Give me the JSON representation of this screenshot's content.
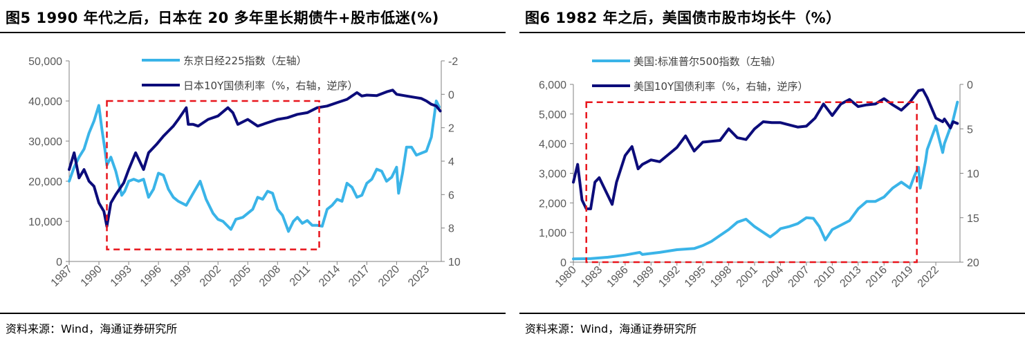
{
  "colors": {
    "nikkei": "#3ab4e8",
    "yield": "#0c0c7a",
    "box": "#e8141b",
    "axis": "#808080"
  },
  "left": {
    "title": "图5   1990 年代之后，日本在 20 多年里长期债牛+股市低迷(%)",
    "source": "资料来源：Wind，海通证券研究所",
    "legend": [
      "东京日经225指数（左轴）",
      "日本10Y国债利率（%，右轴，逆序）"
    ],
    "y_left_ticks": [
      "50,000",
      "40,000",
      "30,000",
      "20,000",
      "10,000",
      "0"
    ],
    "y_right_ticks": [
      "-2",
      "0",
      "2",
      "4",
      "6",
      "8",
      "10"
    ],
    "x_ticks": [
      "1987",
      "1990",
      "1993",
      "1996",
      "1999",
      "2002",
      "2005",
      "2008",
      "2011",
      "2014",
      "2017",
      "2020",
      "2023"
    ]
  },
  "right": {
    "title": "图6   1982 年之后，美国债市股市均长牛（%）",
    "source": "资料来源：Wind，海通证券研究所",
    "legend": [
      "美国:标准普尔500指数（左轴）",
      "美国10Y国债利率（%，右轴，逆序）"
    ],
    "y_left_ticks": [
      "6,000",
      "5,000",
      "4,000",
      "3,000",
      "2,000",
      "1,000",
      "0"
    ],
    "y_right_ticks": [
      "0",
      "5",
      "10",
      "15",
      "20"
    ],
    "x_ticks": [
      "1980",
      "1983",
      "1986",
      "1989",
      "1992",
      "1995",
      "1998",
      "2001",
      "2004",
      "2007",
      "2010",
      "2013",
      "2016",
      "2019",
      "2022"
    ]
  },
  "chart_data": [
    {
      "type": "line",
      "title": "1990 年代之后，日本在 20 多年里长期债牛+股市低迷(%)",
      "x_range": [
        1987,
        2024.5
      ],
      "y_left_range": [
        0,
        50000
      ],
      "y_right_range": [
        -2,
        10
      ],
      "y_right_inverted": true,
      "highlight_box": {
        "x": [
          1990.8,
          2012.2
        ],
        "y_left": [
          3000,
          40000
        ]
      },
      "series": [
        {
          "name": "东京日经225指数（左轴）",
          "axis": "left",
          "x": [
            1987,
            1987.5,
            1988,
            1988.5,
            1989,
            1989.5,
            1989.99,
            1990.3,
            1990.6,
            1990.8,
            1991.2,
            1991.7,
            1992.3,
            1992.6,
            1993,
            1993.5,
            1994,
            1994.5,
            1995,
            1995.5,
            1996,
            1996.5,
            1997,
            1997.5,
            1998,
            1998.8,
            1999.5,
            2000.2,
            2000.8,
            2001.5,
            2002,
            2002.5,
            2003.3,
            2003.8,
            2004.5,
            2005,
            2005.5,
            2006,
            2006.5,
            2007,
            2007.5,
            2008,
            2008.5,
            2009.1,
            2009.6,
            2010,
            2010.5,
            2011,
            2011.5,
            2012,
            2012.5,
            2013,
            2013.5,
            2014,
            2014.5,
            2015,
            2015.5,
            2016,
            2016.5,
            2017,
            2017.5,
            2018,
            2018.5,
            2018.99,
            2019.5,
            2020,
            2020.2,
            2020.6,
            2021,
            2021.5,
            2022,
            2022.5,
            2023,
            2023.5,
            2024,
            2024.3
          ],
          "values": [
            20000,
            23500,
            26000,
            28000,
            32000,
            35000,
            38900,
            33000,
            28000,
            24000,
            26000,
            22500,
            16500,
            17500,
            20000,
            20500,
            20000,
            20500,
            16000,
            18000,
            22000,
            21500,
            18000,
            16000,
            15000,
            14000,
            17000,
            20000,
            15500,
            12000,
            10500,
            10000,
            8000,
            10500,
            11000,
            12000,
            13000,
            16000,
            15500,
            17500,
            17000,
            13000,
            11500,
            7500,
            10000,
            11000,
            9500,
            10200,
            9000,
            9000,
            8800,
            13000,
            14000,
            15500,
            15000,
            19500,
            18500,
            16000,
            16500,
            19500,
            20500,
            23000,
            22500,
            20000,
            21000,
            23500,
            17000,
            22000,
            28500,
            28500,
            26500,
            27000,
            27500,
            31000,
            40000,
            38500
          ]
        },
        {
          "name": "日本10Y国债利率（%，右轴，逆序）",
          "axis": "right",
          "x": [
            1987,
            1987.5,
            1988,
            1988.5,
            1989,
            1989.5,
            1990,
            1990.5,
            1990.8,
            1991.2,
            1991.7,
            1992.5,
            1993,
            1993.7,
            1994.5,
            1995,
            1995.8,
            1996.5,
            1997,
            1997.5,
            1998,
            1998.8,
            1999,
            1999.5,
            2000,
            2001,
            2002,
            2003,
            2003.5,
            2004,
            2005,
            2006,
            2007,
            2008,
            2009,
            2010,
            2011,
            2012,
            2013,
            2014,
            2015,
            2016,
            2016.5,
            2017,
            2018,
            2019,
            2019.6,
            2020,
            2021,
            2022,
            2022.5,
            2023,
            2023.5,
            2024,
            2024.4
          ],
          "values": [
            4.5,
            3.5,
            5,
            4.5,
            5.2,
            5.5,
            6.5,
            7,
            7.9,
            6.5,
            6,
            5.3,
            4.5,
            3.5,
            4.5,
            3.5,
            3,
            2.5,
            2.2,
            1.9,
            1.5,
            0.8,
            1.8,
            1.8,
            1.9,
            1.5,
            1.3,
            0.8,
            1.1,
            1.8,
            1.5,
            1.9,
            1.7,
            1.5,
            1.4,
            1.2,
            1.1,
            0.8,
            0.7,
            0.5,
            0.3,
            -0.1,
            0.1,
            0.05,
            0.08,
            -0.15,
            -0.25,
            0.0,
            0.1,
            0.2,
            0.25,
            0.4,
            0.6,
            0.7,
            1.0
          ]
        }
      ]
    },
    {
      "type": "line",
      "title": "1982 年之后，美国债市股市均长牛（%）",
      "x_range": [
        1980,
        2024.8
      ],
      "y_left_range": [
        0,
        6000
      ],
      "y_right_range": [
        0,
        20
      ],
      "y_right_inverted": true,
      "highlight_box": {
        "x": [
          1981.5,
          2019.8
        ],
        "y_left": [
          0,
          5400
        ]
      },
      "series": [
        {
          "name": "美国:标准普尔500指数（左轴）",
          "axis": "left",
          "x": [
            1980,
            1982,
            1984,
            1986,
            1987.7,
            1988,
            1990,
            1992,
            1994,
            1995,
            1996,
            1997,
            1998,
            1999,
            2000,
            2001,
            2002.8,
            2003.5,
            2004,
            2005,
            2006,
            2007,
            2007.8,
            2008.5,
            2009.2,
            2010,
            2011,
            2012,
            2013,
            2014,
            2015,
            2016,
            2017,
            2018,
            2018.99,
            2019.5,
            2020,
            2020.2,
            2020.8,
            2021,
            2022,
            2022.8,
            2023,
            2023.5,
            2024,
            2024.5
          ],
          "values": [
            110,
            120,
            165,
            240,
            330,
            260,
            330,
            420,
            460,
            560,
            700,
            900,
            1100,
            1350,
            1450,
            1200,
            850,
            1000,
            1130,
            1200,
            1300,
            1500,
            1480,
            1200,
            750,
            1100,
            1250,
            1400,
            1800,
            2050,
            2050,
            2200,
            2500,
            2700,
            2500,
            2900,
            3200,
            2500,
            3400,
            3800,
            4600,
            3700,
            4000,
            4400,
            4800,
            5400
          ]
        },
        {
          "name": "美国10Y国债利率（%，右轴，逆序）",
          "axis": "right",
          "x": [
            1980,
            1980.5,
            1981,
            1981.5,
            1982,
            1982.5,
            1983,
            1984,
            1984.5,
            1985,
            1986,
            1986.8,
            1987.5,
            1988,
            1989,
            1990,
            1991,
            1992,
            1993,
            1994,
            1995,
            1996,
            1997,
            1998,
            1999,
            2000,
            2001,
            2002,
            2003,
            2004,
            2006,
            2007,
            2008,
            2008.99,
            2010,
            2011,
            2012,
            2013,
            2014,
            2015,
            2016,
            2017,
            2018,
            2019,
            2020,
            2020.5,
            2021,
            2022,
            2022.8,
            2023,
            2023.7,
            2024,
            2024.5
          ],
          "values": [
            11,
            9,
            13,
            14,
            14,
            11,
            10.5,
            12.5,
            13.5,
            11,
            8,
            7,
            9.5,
            9,
            8.5,
            8.7,
            7.9,
            7.1,
            5.8,
            7.5,
            6.5,
            6.4,
            6.3,
            5,
            6,
            6.2,
            5,
            4.2,
            4.3,
            4.3,
            4.8,
            4.7,
            3.8,
            2.2,
            3.5,
            2.2,
            1.7,
            2.5,
            2.3,
            2.2,
            1.6,
            2.3,
            2.9,
            2,
            0.7,
            0.6,
            1.5,
            3.8,
            4.2,
            3.9,
            4.9,
            4.2,
            4.4
          ]
        }
      ]
    }
  ]
}
